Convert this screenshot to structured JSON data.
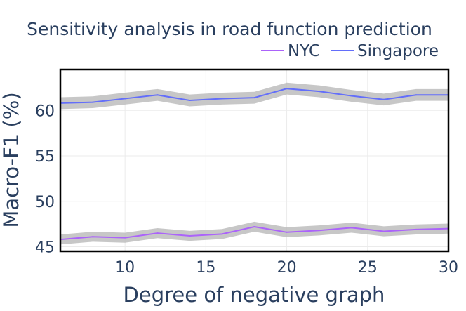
{
  "chart_data": {
    "type": "line",
    "title": "Sensitivity analysis in road function prediction",
    "xlabel": "Degree of negative graph",
    "ylabel": "Macro-F1 (%)",
    "xlim": [
      6,
      30
    ],
    "ylim": [
      44.5,
      64.5
    ],
    "x_ticks": [
      10,
      15,
      20,
      25,
      30
    ],
    "y_ticks": [
      45,
      50,
      55,
      60
    ],
    "grid": true,
    "legend_position": "top-right",
    "band_color": "#bdbdbd",
    "x": [
      6,
      8,
      10,
      12,
      14,
      16,
      18,
      20,
      22,
      24,
      26,
      28,
      30
    ],
    "series": [
      {
        "name": "NYC",
        "color": "#ab63fa",
        "values": [
          45.8,
          46.1,
          46.0,
          46.5,
          46.2,
          46.4,
          47.2,
          46.6,
          46.8,
          47.1,
          46.7,
          46.9,
          47.0
        ],
        "band": 0.55
      },
      {
        "name": "Singapore",
        "color": "#636efa",
        "values": [
          60.8,
          60.9,
          61.3,
          61.7,
          61.1,
          61.3,
          61.4,
          62.4,
          62.1,
          61.6,
          61.2,
          61.7,
          61.7
        ],
        "band": 0.65
      }
    ]
  }
}
